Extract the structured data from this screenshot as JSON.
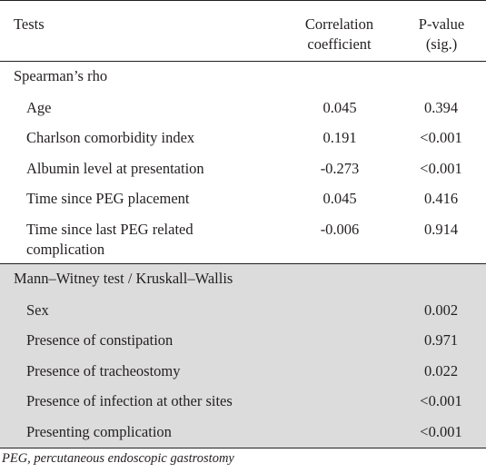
{
  "table": {
    "headers": {
      "tests": "Tests",
      "correlation_line1": "Correlation",
      "correlation_line2": "coefficient",
      "pvalue_line1": "P-value",
      "pvalue_line2": "(sig.)"
    },
    "groups": [
      {
        "label": "Spearman’s rho",
        "rows": [
          {
            "name": "Age",
            "corr": "0.045",
            "p": "0.394"
          },
          {
            "name": "Charlson comorbidity index",
            "corr": "0.191",
            "p": "<0.001"
          },
          {
            "name": "Albumin level at presentation",
            "corr": "-0.273",
            "p": "<0.001"
          },
          {
            "name": "Time since PEG placement",
            "corr": "0.045",
            "p": "0.416"
          },
          {
            "name_line1": "Time since last PEG related",
            "name_line2": "complication",
            "corr": "-0.006",
            "p": "0.914"
          }
        ]
      },
      {
        "label": "Mann–Witney test / Kruskall–Wallis",
        "rows": [
          {
            "name": "Sex",
            "corr": "",
            "p": "0.002"
          },
          {
            "name": "Presence of constipation",
            "corr": "",
            "p": "0.971"
          },
          {
            "name": "Presence of tracheostomy",
            "corr": "",
            "p": "0.022"
          },
          {
            "name": "Presence of infection at other sites",
            "corr": "",
            "p": "<0.001"
          },
          {
            "name": "Presenting complication",
            "corr": "",
            "p": "<0.001"
          }
        ]
      }
    ]
  },
  "footnote": "PEG, percutaneous endoscopic gastrostomy",
  "colors": {
    "text": "#231f20",
    "shaded_section": "#dcdcdd",
    "rule": "#231f20"
  }
}
